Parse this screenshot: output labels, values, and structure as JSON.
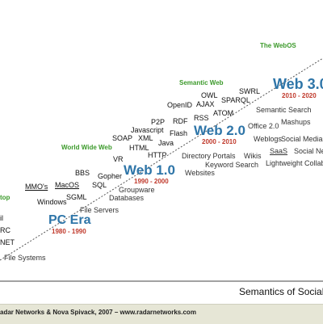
{
  "eras": {
    "pc": {
      "name": "PC Era",
      "years": "1980 - 1990"
    },
    "web1": {
      "name": "Web 1.0",
      "years": "1990 - 2000"
    },
    "web2": {
      "name": "Web 2.0",
      "years": "2000 - 2010"
    },
    "web3": {
      "name": "Web 3.0",
      "years": "2010 - 2020"
    }
  },
  "stages": {
    "desktop": "top",
    "www": "World Wide Web",
    "semantic_web": "Semantic Web",
    "webos": "The WebOS"
  },
  "techs": {
    "email": "il",
    "irc": "RC",
    "net": "NET",
    "file_systems": "File Systems",
    "mmos": "MMO's",
    "macos": "MacOS",
    "windows": "Windows",
    "sgml": "SGML",
    "bbs": "BBS",
    "gopher": "Gopher",
    "sql": "SQL",
    "vr": "VR",
    "file_servers": "File Servers",
    "groupware": "Groupware",
    "databases": "Databases",
    "p2p": "P2P",
    "rdf": "RDF",
    "javascript": "Javascript",
    "flash": "Flash",
    "soap": "SOAP",
    "xml": "XML",
    "java": "Java",
    "html": "HTML",
    "http": "HTTP",
    "openid": "OpenID",
    "ajax": "AJAX",
    "owl": "OWL",
    "swrl": "SWRL",
    "sparql": "SPARQL",
    "atom": "ATOM",
    "rss": "RSS",
    "office20": "Office 2.0",
    "directory_portals": "Directory Portals",
    "wikis": "Wikis",
    "keyword_search": "Keyword Search",
    "websites": "Websites",
    "weblogs": "Weblogs",
    "social_media": "Social Media",
    "saas": "SaaS",
    "social_networks": "Social Ne",
    "lightweight_collab": "Lightweight Collabo",
    "semantic_search": "Semantic Search",
    "mashups": "Mashups"
  },
  "axis": {
    "x_title": "Semantics of Social"
  },
  "footer": {
    "credit": "adar Networks & Nova Spivack, 2007 – ",
    "url": "www.radarnetworks.com"
  },
  "colors": {
    "era": "#2e75a8",
    "years": "#c0392b",
    "stage": "#3c9a2b",
    "footer_bg": "#e6e6d6"
  }
}
